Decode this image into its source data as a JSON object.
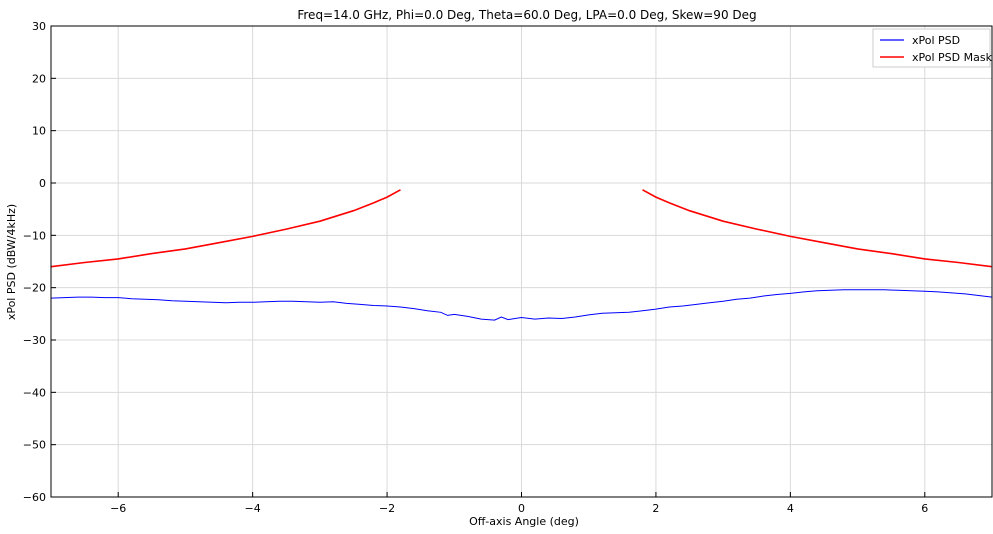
{
  "chart_data": {
    "type": "line",
    "title": "Freq=14.0 GHz, Phi=0.0 Deg, Theta=60.0 Deg, LPA=0.0 Deg, Skew=90 Deg",
    "xlabel": "Off-axis Angle (deg)",
    "ylabel": "xPol PSD (dBW/4kHz)",
    "xlim": [
      -7,
      7
    ],
    "ylim": [
      -60,
      30
    ],
    "x_ticks": [
      -6,
      -4,
      -2,
      0,
      2,
      4,
      6
    ],
    "x_tick_labels": [
      "−6",
      "−4",
      "−2",
      "0",
      "2",
      "4",
      "6"
    ],
    "y_ticks": [
      -60,
      -50,
      -40,
      -30,
      -20,
      -10,
      0,
      10,
      20,
      30
    ],
    "y_tick_labels": [
      "−60",
      "−50",
      "−40",
      "−30",
      "−20",
      "−10",
      "0",
      "10",
      "20",
      "30"
    ],
    "grid": true,
    "legend_position": "top-right",
    "series": [
      {
        "name": "xPol PSD",
        "color": "#0000ff",
        "x": [
          -7.0,
          -6.8,
          -6.6,
          -6.4,
          -6.2,
          -6.0,
          -5.8,
          -5.6,
          -5.4,
          -5.2,
          -5.0,
          -4.8,
          -4.6,
          -4.4,
          -4.2,
          -4.0,
          -3.8,
          -3.6,
          -3.4,
          -3.2,
          -3.0,
          -2.8,
          -2.6,
          -2.4,
          -2.2,
          -2.0,
          -1.8,
          -1.6,
          -1.4,
          -1.2,
          -1.1,
          -1.0,
          -0.8,
          -0.6,
          -0.4,
          -0.3,
          -0.2,
          0.0,
          0.2,
          0.4,
          0.6,
          0.8,
          1.0,
          1.2,
          1.4,
          1.6,
          1.8,
          2.0,
          2.2,
          2.4,
          2.6,
          2.8,
          3.0,
          3.2,
          3.4,
          3.6,
          3.8,
          4.0,
          4.2,
          4.4,
          4.6,
          4.8,
          5.0,
          5.2,
          5.4,
          5.6,
          5.8,
          6.0,
          6.2,
          6.4,
          6.6,
          6.8,
          7.0
        ],
        "y": [
          -22.0,
          -21.9,
          -21.8,
          -21.8,
          -21.9,
          -21.9,
          -22.1,
          -22.2,
          -22.3,
          -22.5,
          -22.6,
          -22.7,
          -22.8,
          -22.9,
          -22.8,
          -22.8,
          -22.7,
          -22.6,
          -22.6,
          -22.7,
          -22.8,
          -22.7,
          -23.0,
          -23.2,
          -23.4,
          -23.5,
          -23.7,
          -24.0,
          -24.4,
          -24.7,
          -25.3,
          -25.1,
          -25.5,
          -26.0,
          -26.2,
          -25.6,
          -26.1,
          -25.7,
          -26.0,
          -25.8,
          -25.9,
          -25.6,
          -25.2,
          -24.9,
          -24.8,
          -24.7,
          -24.4,
          -24.1,
          -23.7,
          -23.5,
          -23.2,
          -22.9,
          -22.6,
          -22.2,
          -22.0,
          -21.6,
          -21.3,
          -21.1,
          -20.8,
          -20.6,
          -20.5,
          -20.4,
          -20.4,
          -20.4,
          -20.4,
          -20.5,
          -20.6,
          -20.7,
          -20.8,
          -21.0,
          -21.2,
          -21.5,
          -21.8
        ]
      },
      {
        "name": "xPol PSD Mask",
        "color": "#ff0000",
        "segments": [
          {
            "x": [
              -7.0,
              -6.5,
              -6.0,
              -5.5,
              -5.0,
              -4.5,
              -4.0,
              -3.5,
              -3.0,
              -2.5,
              -2.2,
              -2.0,
              -1.8
            ],
            "y": [
              -16.0,
              -15.2,
              -14.5,
              -13.5,
              -12.6,
              -11.4,
              -10.2,
              -8.8,
              -7.3,
              -5.3,
              -3.8,
              -2.7,
              -1.3
            ]
          },
          {
            "x": [
              1.8,
              2.0,
              2.2,
              2.5,
              3.0,
              3.5,
              4.0,
              4.5,
              5.0,
              5.5,
              6.0,
              6.5,
              7.0
            ],
            "y": [
              -1.3,
              -2.7,
              -3.8,
              -5.3,
              -7.3,
              -8.8,
              -10.2,
              -11.4,
              -12.6,
              -13.5,
              -14.5,
              -15.2,
              -16.0
            ]
          }
        ]
      }
    ]
  }
}
